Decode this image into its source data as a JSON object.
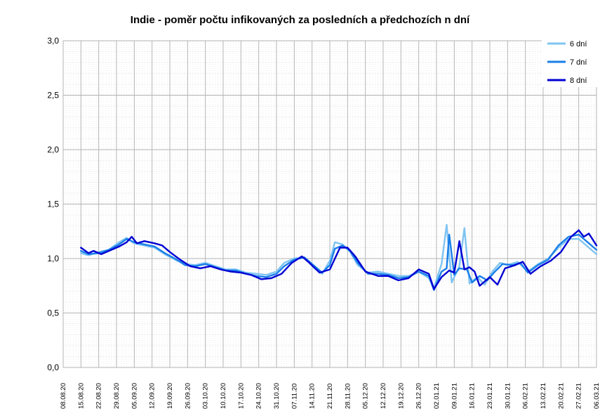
{
  "chart_data": {
    "type": "line",
    "title": "Indie - poměr počtu infikovaných za posledních a předchozích n dní",
    "xlabel": "",
    "ylabel": "",
    "ylim": [
      0,
      3
    ],
    "yticks": [
      "0,0",
      "0,5",
      "1,0",
      "1,5",
      "2,0",
      "2,5",
      "3,0"
    ],
    "xlim": [
      "2020-08-08",
      "2021-03-06"
    ],
    "xticks": [
      "08.08.20",
      "15.08.20",
      "22.08.20",
      "29.08.20",
      "05.09.20",
      "12.09.20",
      "19.09.20",
      "26.09.20",
      "03.10.20",
      "10.10.20",
      "17.10.20",
      "24.10.20",
      "31.10.20",
      "07.11.20",
      "14.11.20",
      "21.11.20",
      "28.11.20",
      "05.12.20",
      "12.12.20",
      "19.12.20",
      "26.12.20",
      "02.01.21",
      "09.01.21",
      "16.01.21",
      "23.01.21",
      "30.01.21",
      "06.02.21",
      "13.02.21",
      "20.02.21",
      "27.02.21",
      "06.03.21"
    ],
    "grid": true,
    "legend_position": "top-right",
    "series": [
      {
        "name": "6 dní",
        "color": "#7ec4f2",
        "points": [
          [
            "2020-08-15",
            1.05
          ],
          [
            "2020-08-18",
            1.03
          ],
          [
            "2020-08-22",
            1.06
          ],
          [
            "2020-08-26",
            1.08
          ],
          [
            "2020-08-30",
            1.15
          ],
          [
            "2020-09-02",
            1.19
          ],
          [
            "2020-09-05",
            1.14
          ],
          [
            "2020-09-09",
            1.12
          ],
          [
            "2020-09-13",
            1.1
          ],
          [
            "2020-09-17",
            1.04
          ],
          [
            "2020-09-21",
            0.99
          ],
          [
            "2020-09-25",
            0.95
          ],
          [
            "2020-09-29",
            0.94
          ],
          [
            "2020-10-03",
            0.96
          ],
          [
            "2020-10-07",
            0.93
          ],
          [
            "2020-10-11",
            0.9
          ],
          [
            "2020-10-15",
            0.9
          ],
          [
            "2020-10-19",
            0.87
          ],
          [
            "2020-10-23",
            0.86
          ],
          [
            "2020-10-27",
            0.85
          ],
          [
            "2020-10-31",
            0.88
          ],
          [
            "2020-11-03",
            0.96
          ],
          [
            "2020-11-07",
            1.0
          ],
          [
            "2020-11-11",
            1.01
          ],
          [
            "2020-11-15",
            0.91
          ],
          [
            "2020-11-18",
            0.86
          ],
          [
            "2020-11-21",
            0.98
          ],
          [
            "2020-11-23",
            1.15
          ],
          [
            "2020-11-26",
            1.13
          ],
          [
            "2020-11-29",
            1.06
          ],
          [
            "2020-12-02",
            0.94
          ],
          [
            "2020-12-06",
            0.87
          ],
          [
            "2020-12-10",
            0.88
          ],
          [
            "2020-12-14",
            0.86
          ],
          [
            "2020-12-18",
            0.84
          ],
          [
            "2020-12-22",
            0.84
          ],
          [
            "2020-12-26",
            0.88
          ],
          [
            "2020-12-30",
            0.82
          ],
          [
            "2021-01-01",
            0.73
          ],
          [
            "2021-01-04",
            0.95
          ],
          [
            "2021-01-06",
            1.31
          ],
          [
            "2021-01-08",
            0.78
          ],
          [
            "2021-01-11",
            0.93
          ],
          [
            "2021-01-13",
            1.28
          ],
          [
            "2021-01-15",
            0.77
          ],
          [
            "2021-01-18",
            0.83
          ],
          [
            "2021-01-21",
            0.76
          ],
          [
            "2021-01-24",
            0.88
          ],
          [
            "2021-01-27",
            0.96
          ],
          [
            "2021-01-30",
            0.94
          ],
          [
            "2021-02-03",
            0.97
          ],
          [
            "2021-02-07",
            0.88
          ],
          [
            "2021-02-11",
            0.95
          ],
          [
            "2021-02-15",
            1.0
          ],
          [
            "2021-02-19",
            1.1
          ],
          [
            "2021-02-23",
            1.18
          ],
          [
            "2021-02-27",
            1.18
          ],
          [
            "2021-03-02",
            1.12
          ],
          [
            "2021-03-06",
            1.04
          ]
        ]
      },
      {
        "name": "7 dní",
        "color": "#1a7ee8",
        "points": [
          [
            "2020-08-15",
            1.07
          ],
          [
            "2020-08-18",
            1.04
          ],
          [
            "2020-08-22",
            1.05
          ],
          [
            "2020-08-26",
            1.08
          ],
          [
            "2020-08-30",
            1.13
          ],
          [
            "2020-09-02",
            1.18
          ],
          [
            "2020-09-05",
            1.15
          ],
          [
            "2020-09-09",
            1.13
          ],
          [
            "2020-09-13",
            1.11
          ],
          [
            "2020-09-17",
            1.05
          ],
          [
            "2020-09-21",
            1.0
          ],
          [
            "2020-09-25",
            0.94
          ],
          [
            "2020-09-29",
            0.93
          ],
          [
            "2020-10-03",
            0.95
          ],
          [
            "2020-10-07",
            0.92
          ],
          [
            "2020-10-11",
            0.89
          ],
          [
            "2020-10-15",
            0.89
          ],
          [
            "2020-10-19",
            0.86
          ],
          [
            "2020-10-23",
            0.84
          ],
          [
            "2020-10-27",
            0.83
          ],
          [
            "2020-10-31",
            0.86
          ],
          [
            "2020-11-03",
            0.93
          ],
          [
            "2020-11-07",
            0.99
          ],
          [
            "2020-11-11",
            1.01
          ],
          [
            "2020-11-15",
            0.93
          ],
          [
            "2020-11-18",
            0.87
          ],
          [
            "2020-11-21",
            0.94
          ],
          [
            "2020-11-23",
            1.09
          ],
          [
            "2020-11-26",
            1.12
          ],
          [
            "2020-11-29",
            1.07
          ],
          [
            "2020-12-02",
            0.96
          ],
          [
            "2020-12-06",
            0.86
          ],
          [
            "2020-12-10",
            0.86
          ],
          [
            "2020-12-14",
            0.85
          ],
          [
            "2020-12-18",
            0.82
          ],
          [
            "2020-12-22",
            0.83
          ],
          [
            "2020-12-26",
            0.88
          ],
          [
            "2020-12-30",
            0.84
          ],
          [
            "2021-01-01",
            0.71
          ],
          [
            "2021-01-04",
            0.88
          ],
          [
            "2021-01-06",
            0.91
          ],
          [
            "2021-01-07",
            1.22
          ],
          [
            "2021-01-09",
            0.85
          ],
          [
            "2021-01-11",
            0.91
          ],
          [
            "2021-01-14",
            0.9
          ],
          [
            "2021-01-16",
            0.78
          ],
          [
            "2021-01-19",
            0.84
          ],
          [
            "2021-01-22",
            0.8
          ],
          [
            "2021-01-25",
            0.88
          ],
          [
            "2021-01-28",
            0.95
          ],
          [
            "2021-02-01",
            0.94
          ],
          [
            "2021-02-04",
            0.96
          ],
          [
            "2021-02-07",
            0.87
          ],
          [
            "2021-02-11",
            0.94
          ],
          [
            "2021-02-15",
            0.99
          ],
          [
            "2021-02-19",
            1.12
          ],
          [
            "2021-02-23",
            1.2
          ],
          [
            "2021-02-27",
            1.22
          ],
          [
            "2021-03-02",
            1.16
          ],
          [
            "2021-03-06",
            1.08
          ]
        ]
      },
      {
        "name": "8 dní",
        "color": "#0000d4",
        "points": [
          [
            "2020-08-15",
            1.1
          ],
          [
            "2020-08-18",
            1.05
          ],
          [
            "2020-08-20",
            1.07
          ],
          [
            "2020-08-23",
            1.04
          ],
          [
            "2020-08-26",
            1.07
          ],
          [
            "2020-08-30",
            1.11
          ],
          [
            "2020-09-02",
            1.15
          ],
          [
            "2020-09-04",
            1.2
          ],
          [
            "2020-09-06",
            1.14
          ],
          [
            "2020-09-09",
            1.16
          ],
          [
            "2020-09-13",
            1.14
          ],
          [
            "2020-09-16",
            1.12
          ],
          [
            "2020-09-19",
            1.06
          ],
          [
            "2020-09-23",
            0.99
          ],
          [
            "2020-09-27",
            0.93
          ],
          [
            "2020-10-01",
            0.91
          ],
          [
            "2020-10-05",
            0.93
          ],
          [
            "2020-10-09",
            0.9
          ],
          [
            "2020-10-13",
            0.88
          ],
          [
            "2020-10-17",
            0.87
          ],
          [
            "2020-10-21",
            0.85
          ],
          [
            "2020-10-25",
            0.81
          ],
          [
            "2020-10-29",
            0.82
          ],
          [
            "2020-11-02",
            0.86
          ],
          [
            "2020-11-06",
            0.96
          ],
          [
            "2020-11-10",
            1.02
          ],
          [
            "2020-11-13",
            0.96
          ],
          [
            "2020-11-17",
            0.87
          ],
          [
            "2020-11-21",
            0.9
          ],
          [
            "2020-11-25",
            1.1
          ],
          [
            "2020-11-28",
            1.1
          ],
          [
            "2020-12-01",
            1.02
          ],
          [
            "2020-12-05",
            0.88
          ],
          [
            "2020-12-10",
            0.84
          ],
          [
            "2020-12-14",
            0.84
          ],
          [
            "2020-12-18",
            0.8
          ],
          [
            "2020-12-22",
            0.82
          ],
          [
            "2020-12-26",
            0.9
          ],
          [
            "2020-12-30",
            0.86
          ],
          [
            "2021-01-01",
            0.72
          ],
          [
            "2021-01-04",
            0.83
          ],
          [
            "2021-01-07",
            0.89
          ],
          [
            "2021-01-09",
            0.87
          ],
          [
            "2021-01-11",
            1.16
          ],
          [
            "2021-01-13",
            0.9
          ],
          [
            "2021-01-15",
            0.92
          ],
          [
            "2021-01-17",
            0.88
          ],
          [
            "2021-01-19",
            0.75
          ],
          [
            "2021-01-23",
            0.83
          ],
          [
            "2021-01-26",
            0.76
          ],
          [
            "2021-01-29",
            0.91
          ],
          [
            "2021-02-02",
            0.94
          ],
          [
            "2021-02-05",
            0.97
          ],
          [
            "2021-02-08",
            0.86
          ],
          [
            "2021-02-12",
            0.93
          ],
          [
            "2021-02-16",
            0.98
          ],
          [
            "2021-02-20",
            1.06
          ],
          [
            "2021-02-24",
            1.2
          ],
          [
            "2021-02-27",
            1.26
          ],
          [
            "2021-03-01",
            1.2
          ],
          [
            "2021-03-03",
            1.23
          ],
          [
            "2021-03-06",
            1.12
          ]
        ]
      }
    ]
  }
}
